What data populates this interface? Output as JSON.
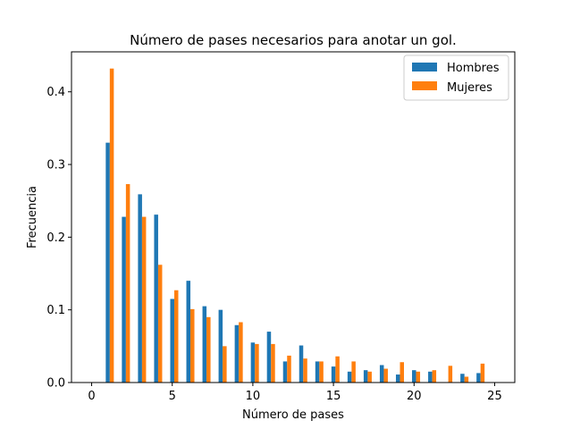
{
  "chart_data": {
    "type": "bar",
    "title": "Número de pases necesarios para anotar un gol.",
    "xlabel": "Número de pases",
    "ylabel": "Frecuencia",
    "xlim": [
      -1.25,
      26.25
    ],
    "ylim": [
      0,
      0.455
    ],
    "xticks": [
      0,
      5,
      10,
      15,
      20,
      25
    ],
    "yticks": [
      0.0,
      0.1,
      0.2,
      0.3,
      0.4
    ],
    "xtick_labels": [
      "0",
      "5",
      "10",
      "15",
      "20",
      "25"
    ],
    "ytick_labels": [
      "0.0",
      "0.1",
      "0.2",
      "0.3",
      "0.4"
    ],
    "grid": false,
    "legend_position": "top-right",
    "x": [
      1,
      2,
      3,
      4,
      5,
      6,
      7,
      8,
      9,
      10,
      11,
      12,
      13,
      14,
      15,
      16,
      17,
      18,
      19,
      20,
      21,
      22,
      23,
      24,
      25
    ],
    "series": [
      {
        "name": "Hombres",
        "color": "#1f77b4",
        "values": [
          0.33,
          0.228,
          0.259,
          0.231,
          0.115,
          0.14,
          0.105,
          0.1,
          0.079,
          0.055,
          0.07,
          0.029,
          0.051,
          0.029,
          0.022,
          0.015,
          0.017,
          0.024,
          0.011,
          0.017,
          0.015,
          0.0,
          0.012,
          0.013,
          0.0
        ]
      },
      {
        "name": "Mujeres",
        "color": "#ff7f0e",
        "values": [
          0.432,
          0.273,
          0.228,
          0.162,
          0.127,
          0.101,
          0.09,
          0.05,
          0.083,
          0.053,
          0.053,
          0.037,
          0.033,
          0.029,
          0.036,
          0.029,
          0.015,
          0.019,
          0.028,
          0.015,
          0.017,
          0.023,
          0.008,
          0.026,
          0.0
        ]
      }
    ]
  }
}
